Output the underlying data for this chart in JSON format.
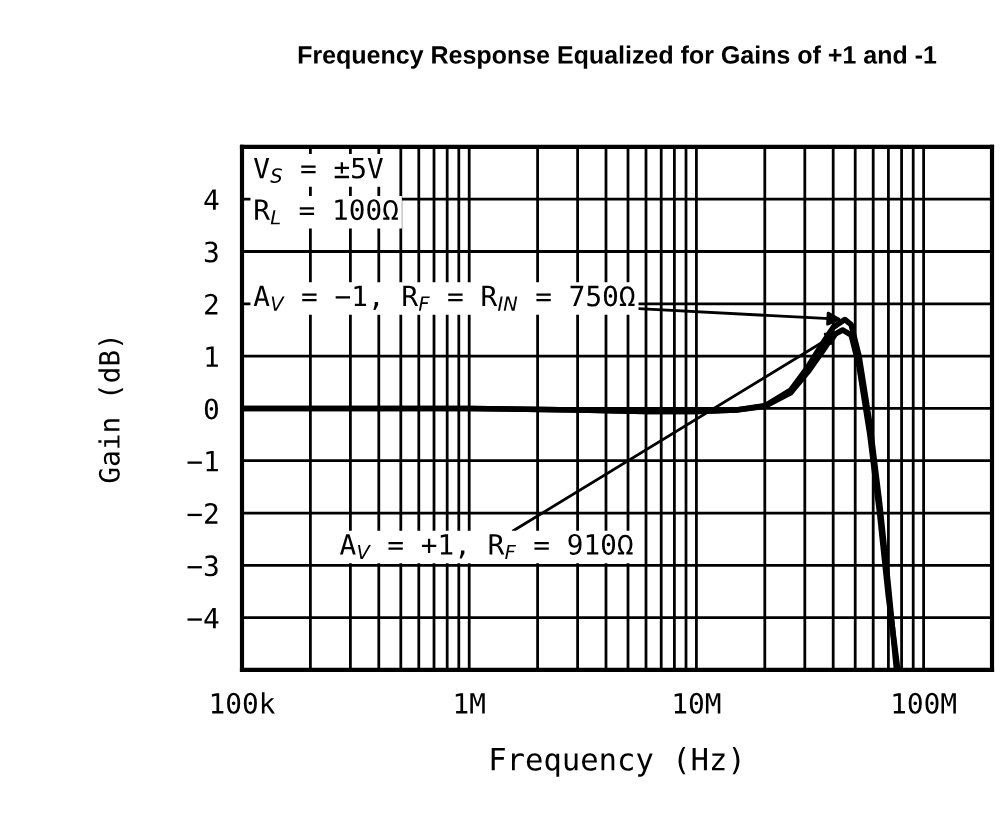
{
  "chart_data": {
    "type": "line",
    "title": "Frequency Response Equalized for Gains of +1 and -1",
    "xlabel": "Frequency (Hz)",
    "ylabel": "Gain (dB)",
    "log": "x",
    "grid": true,
    "xlim": [
      100000,
      200000000
    ],
    "ylim": [
      -5,
      5
    ],
    "xticks": [
      {
        "value": 100000,
        "label": "100k"
      },
      {
        "value": 1000000,
        "label": "1M"
      },
      {
        "value": 10000000,
        "label": "10M"
      },
      {
        "value": 100000000,
        "label": "100M"
      }
    ],
    "yticks": [
      {
        "value": -4,
        "label": "−4"
      },
      {
        "value": -3,
        "label": "−3"
      },
      {
        "value": -2,
        "label": "−2"
      },
      {
        "value": -1,
        "label": "−1"
      },
      {
        "value": 0,
        "label": "0"
      },
      {
        "value": 1,
        "label": "1"
      },
      {
        "value": 2,
        "label": "2"
      },
      {
        "value": 3,
        "label": "3"
      },
      {
        "value": 4,
        "label": "4"
      }
    ],
    "series": [
      {
        "color": "#000000",
        "x": [
          100000,
          1000000,
          3000000,
          6000000,
          10000000,
          15000000,
          20000000,
          26000000,
          31000000,
          36000000,
          40000000,
          45000000,
          48000000,
          52000000,
          58000000,
          64000000,
          70000000,
          76000000
        ],
        "values": [
          0,
          0,
          -0.03,
          -0.06,
          -0.06,
          -0.03,
          0.05,
          0.35,
          0.8,
          1.25,
          1.55,
          1.7,
          1.6,
          1.0,
          -0.3,
          -1.8,
          -3.4,
          -5
        ]
      },
      {
        "color": "#000000",
        "x": [
          100000,
          1000000,
          3000000,
          6000000,
          10000000,
          15000000,
          20000000,
          26000000,
          31000000,
          36000000,
          40000000,
          44000000,
          48000000,
          52000000,
          58000000,
          64000000,
          70000000,
          77000000
        ],
        "values": [
          0,
          0,
          -0.03,
          -0.06,
          -0.06,
          -0.03,
          0.04,
          0.3,
          0.7,
          1.1,
          1.4,
          1.5,
          1.4,
          0.8,
          -0.5,
          -2.0,
          -3.6,
          -5
        ]
      }
    ],
    "annotations": [
      "V$_{S}$ = ±5V",
      "R$_{L}$ = 100Ω",
      {
        "text": "A$_{V}$ = −1, R$_{F}$ = R$_{IN}$ = 750Ω",
        "x": 45000000,
        "y": 1.7
      },
      {
        "text": "A$_{V}$ = +1, R$_{F}$ = 910Ω",
        "x": 44000000,
        "y": 1.5
      }
    ]
  }
}
